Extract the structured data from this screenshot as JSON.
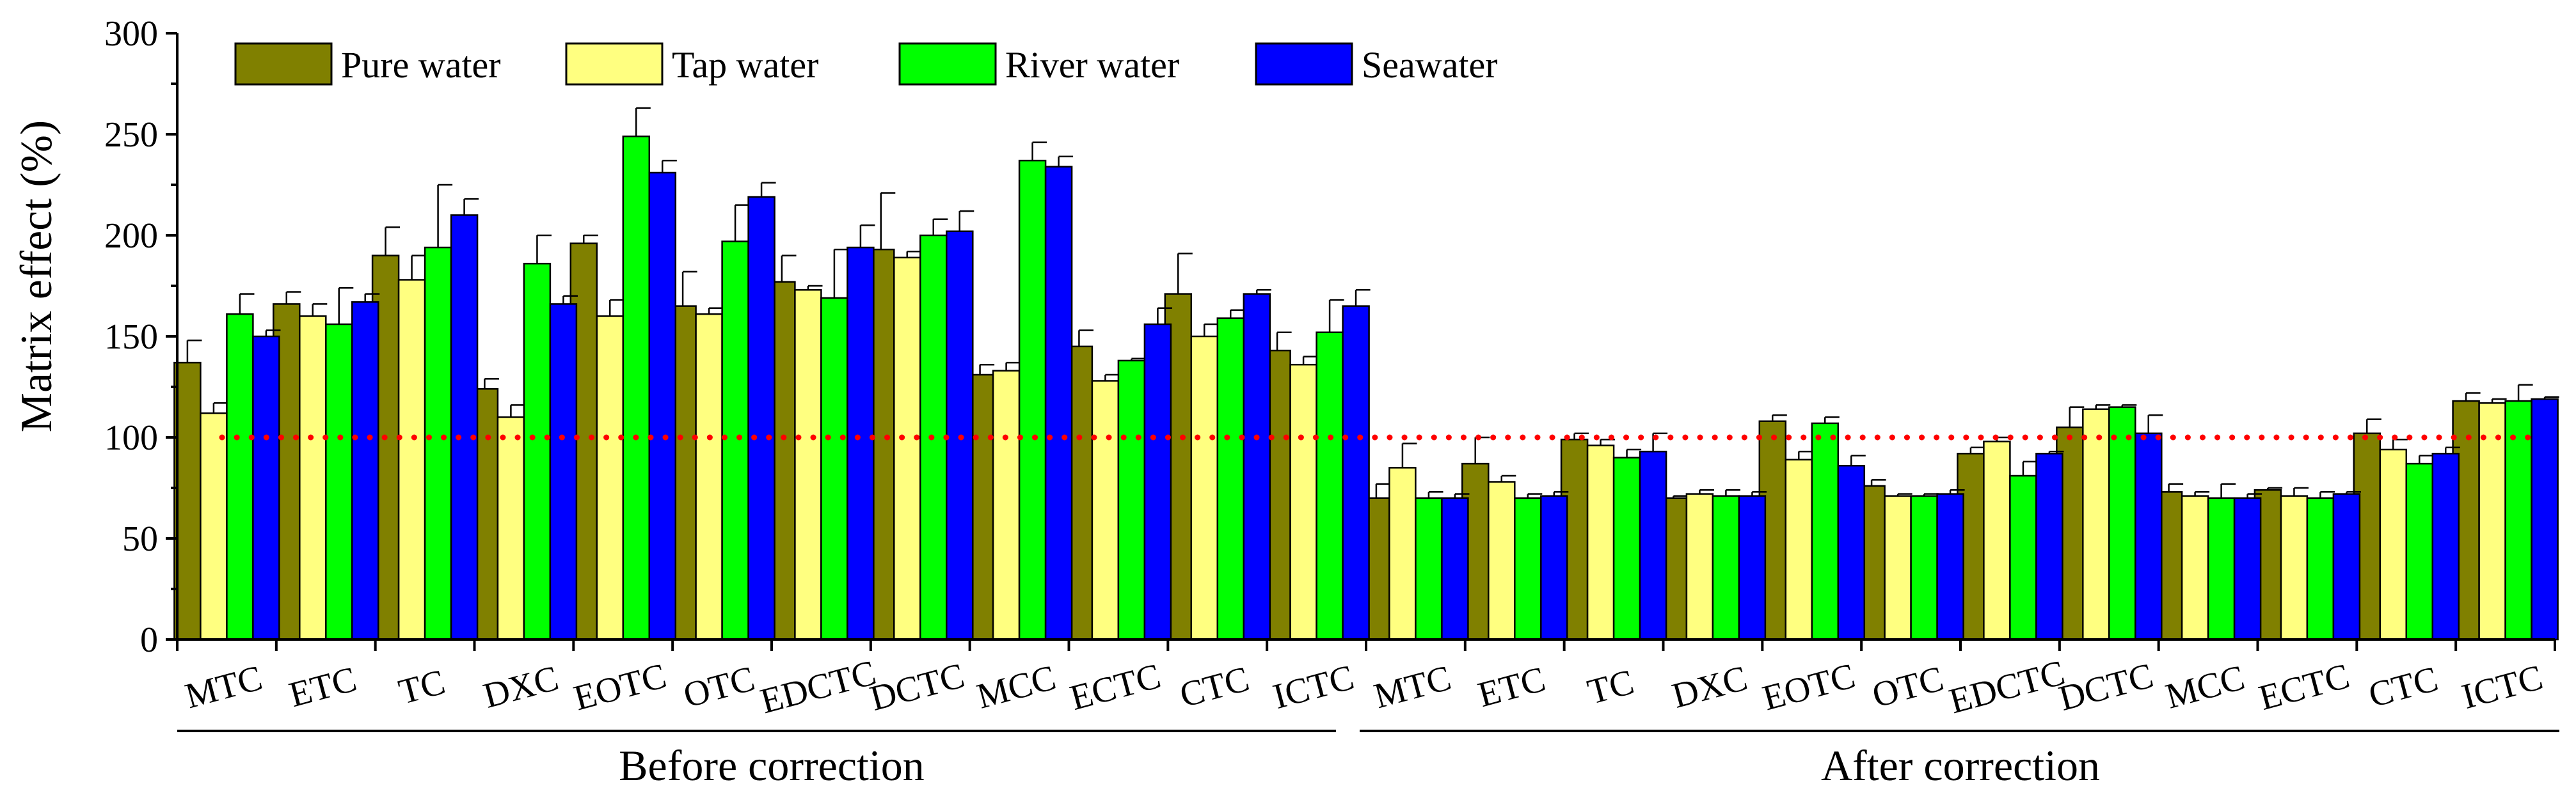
{
  "chart_data": {
    "type": "bar",
    "title": "",
    "xlabel": "",
    "ylabel": "Matrix effect (%)",
    "ylim": [
      0,
      300
    ],
    "yticks": [
      0,
      50,
      100,
      150,
      200,
      250,
      300
    ],
    "grid": false,
    "legend_position": "top-left",
    "reference_line": {
      "value": 100,
      "style": "dotted",
      "color": "#ff0000"
    },
    "groups": [
      {
        "label": "Before correction",
        "categories": [
          "MTC",
          "ETC",
          "TC",
          "DXC",
          "EOTC",
          "OTC",
          "EDCTC",
          "DCTC",
          "MCC",
          "ECTC",
          "CTC",
          "ICTC"
        ]
      },
      {
        "label": "After correction",
        "categories": [
          "MTC",
          "ETC",
          "TC",
          "DXC",
          "EOTC",
          "OTC",
          "EDCTC",
          "DCTC",
          "MCC",
          "ECTC",
          "CTC",
          "ICTC"
        ]
      }
    ],
    "series": [
      {
        "name": "Pure water",
        "color": "#808000",
        "values": [
          137,
          166,
          190,
          124,
          196,
          165,
          177,
          193,
          131,
          145,
          171,
          143,
          70,
          87,
          99,
          70,
          108,
          76,
          92,
          105,
          73,
          74,
          102,
          118
        ],
        "errors": [
          11,
          6,
          14,
          5,
          4,
          17,
          13,
          28,
          5,
          8,
          20,
          9,
          7,
          13,
          3,
          1,
          3,
          3,
          3,
          10,
          4,
          1,
          7,
          4
        ]
      },
      {
        "name": "Tap water",
        "color": "#ffff80",
        "values": [
          112,
          160,
          178,
          110,
          160,
          161,
          173,
          189,
          133,
          128,
          150,
          136,
          85,
          78,
          96,
          72,
          89,
          71,
          98,
          114,
          71,
          71,
          94,
          117
        ],
        "errors": [
          5,
          6,
          12,
          6,
          8,
          3,
          2,
          3,
          4,
          3,
          6,
          4,
          12,
          3,
          3,
          2,
          4,
          1,
          2,
          2,
          2,
          4,
          5,
          2
        ]
      },
      {
        "name": "River water",
        "color": "#00ff00",
        "values": [
          161,
          156,
          194,
          186,
          249,
          197,
          169,
          200,
          237,
          138,
          159,
          152,
          70,
          70,
          90,
          71,
          107,
          71,
          81,
          115,
          70,
          70,
          87,
          118
        ],
        "errors": [
          10,
          18,
          31,
          14,
          14,
          18,
          24,
          8,
          9,
          1,
          4,
          16,
          3,
          2,
          4,
          3,
          3,
          1,
          7,
          1,
          7,
          3,
          4,
          8
        ]
      },
      {
        "name": "Seawater",
        "color": "#0000ff",
        "values": [
          150,
          167,
          210,
          166,
          231,
          219,
          194,
          202,
          234,
          156,
          171,
          165,
          70,
          71,
          93,
          71,
          86,
          72,
          92,
          102,
          70,
          72,
          92,
          119
        ],
        "errors": [
          3,
          4,
          8,
          4,
          6,
          7,
          11,
          10,
          5,
          8,
          2,
          8,
          2,
          2,
          9,
          2,
          5,
          2,
          1,
          9,
          2,
          1,
          3,
          1
        ]
      }
    ]
  }
}
